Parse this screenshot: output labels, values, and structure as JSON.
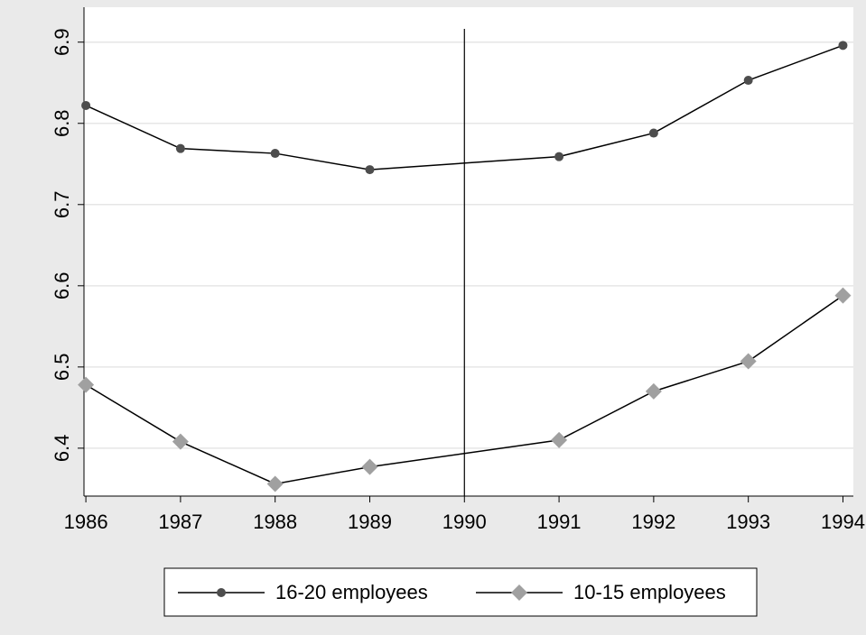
{
  "chart_data": {
    "type": "line",
    "x": [
      1986,
      1987,
      1988,
      1989,
      1991,
      1992,
      1993,
      1994
    ],
    "series": [
      {
        "name": "16-20 employees",
        "color": "#4d4d4d",
        "marker": "circle",
        "values": [
          6.822,
          6.769,
          6.763,
          6.743,
          6.759,
          6.788,
          6.853,
          6.896
        ]
      },
      {
        "name": "10-15 employees",
        "color": "#a0a0a0",
        "marker": "diamond",
        "values": [
          6.478,
          6.408,
          6.356,
          6.377,
          6.41,
          6.47,
          6.507,
          6.588
        ]
      }
    ],
    "line_color": "#000000",
    "xlim": [
      1985.98,
      1994.11
    ],
    "xticks": [
      1986,
      1987,
      1988,
      1989,
      1990,
      1991,
      1992,
      1993,
      1994
    ],
    "ylim": [
      6.341,
      6.943
    ],
    "yticks": [
      6.4,
      6.5,
      6.6,
      6.7,
      6.8,
      6.9
    ],
    "vline": 1990,
    "grid": true
  }
}
